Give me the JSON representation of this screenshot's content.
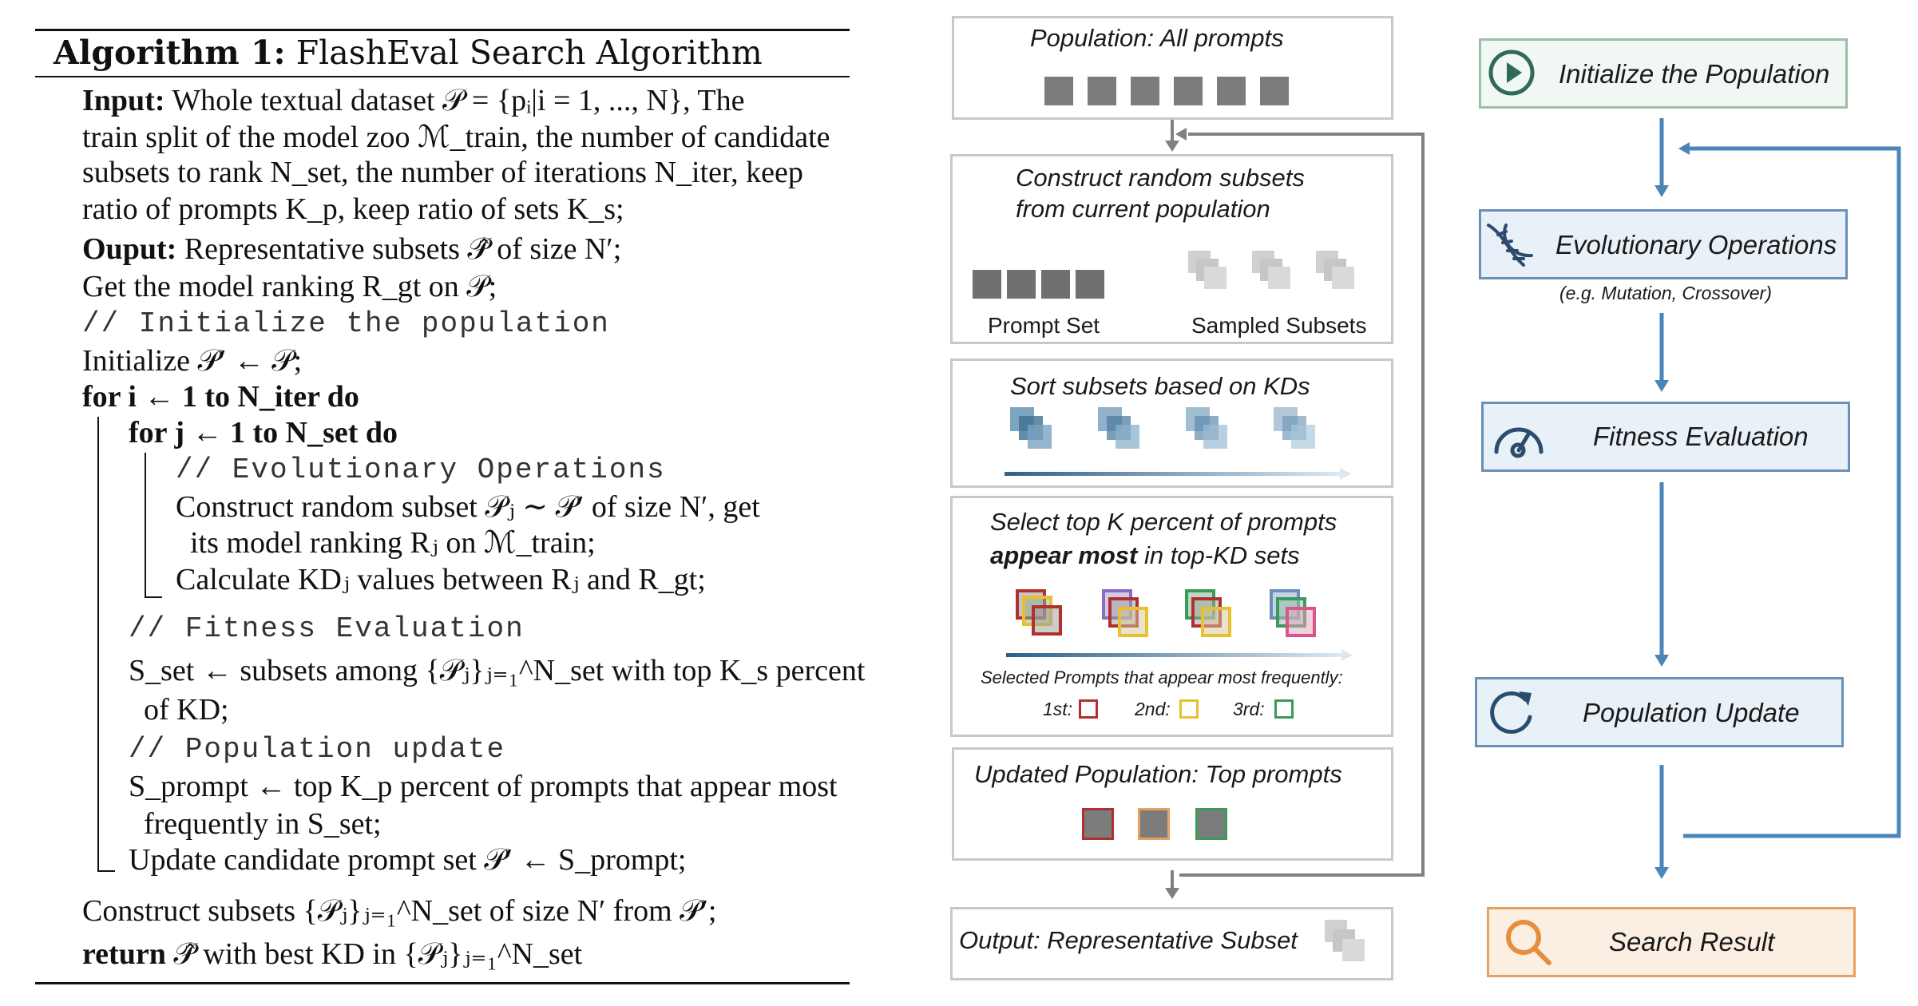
{
  "algorithm": {
    "title_bold": "Algorithm 1:",
    "title_rest": " FlashEval Search Algorithm",
    "input_label": "Input:",
    "input_lines": [
      " Whole textual dataset 𝒫 = {pᵢ|i = 1, ..., N}, The",
      "train split of the model zoo ℳ_train, the number of candidate",
      "subsets to rank N_set, the number of iterations N_iter, keep",
      "ratio of prompts K_p, keep ratio of sets K_s;"
    ],
    "output_label": "Ouput:",
    "output_line": " Representative subsets 𝒫̂ of size N′;",
    "get_ranking": "Get the model ranking R_gt on 𝒫;",
    "comment_init": "// Initialize the population",
    "init_line": "Initialize 𝒫′ ← 𝒫;",
    "for_outer": "for i ← 1 to N_iter do",
    "for_inner": "for j ← 1 to N_set do",
    "comment_evo": "// Evolutionary Operations",
    "construct_1": "Construct random subset 𝒫ⱼ ∼ 𝒫′ of size N′, get",
    "construct_2": "its model ranking Rⱼ on ℳ_train;",
    "calc_kd": "Calculate KDⱼ values between Rⱼ and R_gt;",
    "comment_fit": "// Fitness Evaluation",
    "sset_1": "S_set ← subsets among {𝒫ⱼ}ⱼ₌₁^N_set with top K_s percent",
    "sset_2": "of KD;",
    "comment_pop": "// Population update",
    "sprompt_1": "S_prompt ← top K_p percent of prompts that appear most",
    "sprompt_2": "frequently in S_set;",
    "update_line": "Update candidate prompt set 𝒫′ ← S_prompt;",
    "construct_final": "Construct subsets {𝒫ⱼ}ⱼ₌₁^N_set of size N′ from 𝒫′;",
    "return_kw": "return",
    "return_rest": " 𝒫̂ with best KD in {𝒫ⱼ}ⱼ₌₁^N_set"
  },
  "diagram": {
    "population_title": "Population: All prompts",
    "construct_title_1": "Construct random subsets",
    "construct_title_2": "from current population",
    "prompt_set_label": "Prompt Set",
    "sampled_subsets_label": "Sampled Subsets",
    "sort_title": "Sort subsets based on KDs",
    "select_title_1": "Select top K percent of prompts",
    "select_title_2_bold": "appear most",
    "select_title_2_rest": " in top-KD sets",
    "selected_caption": "Selected Prompts that appear most frequently:",
    "rank_1": "1st:",
    "rank_2": "2nd:",
    "rank_3": "3rd:",
    "updated_title": "Updated Population: Top prompts",
    "output_title": "Output: Representative Subset"
  },
  "flow": {
    "init": "Initialize the Population",
    "evo": "Evolutionary Operations",
    "evo_note": "(e.g. Mutation, Crossover)",
    "fitness": "Fitness Evaluation",
    "update": "Population Update",
    "result": "Search Result"
  },
  "colors": {
    "rank1": "#b03030",
    "rank2": "#e8c030",
    "rank3": "#3a9a5a",
    "flow_blue": "#4a86b8",
    "result_orange": "#e8a060"
  },
  "icons": [
    "play-icon",
    "dna-icon",
    "gauge-icon",
    "refresh-icon",
    "magnifier-icon"
  ]
}
